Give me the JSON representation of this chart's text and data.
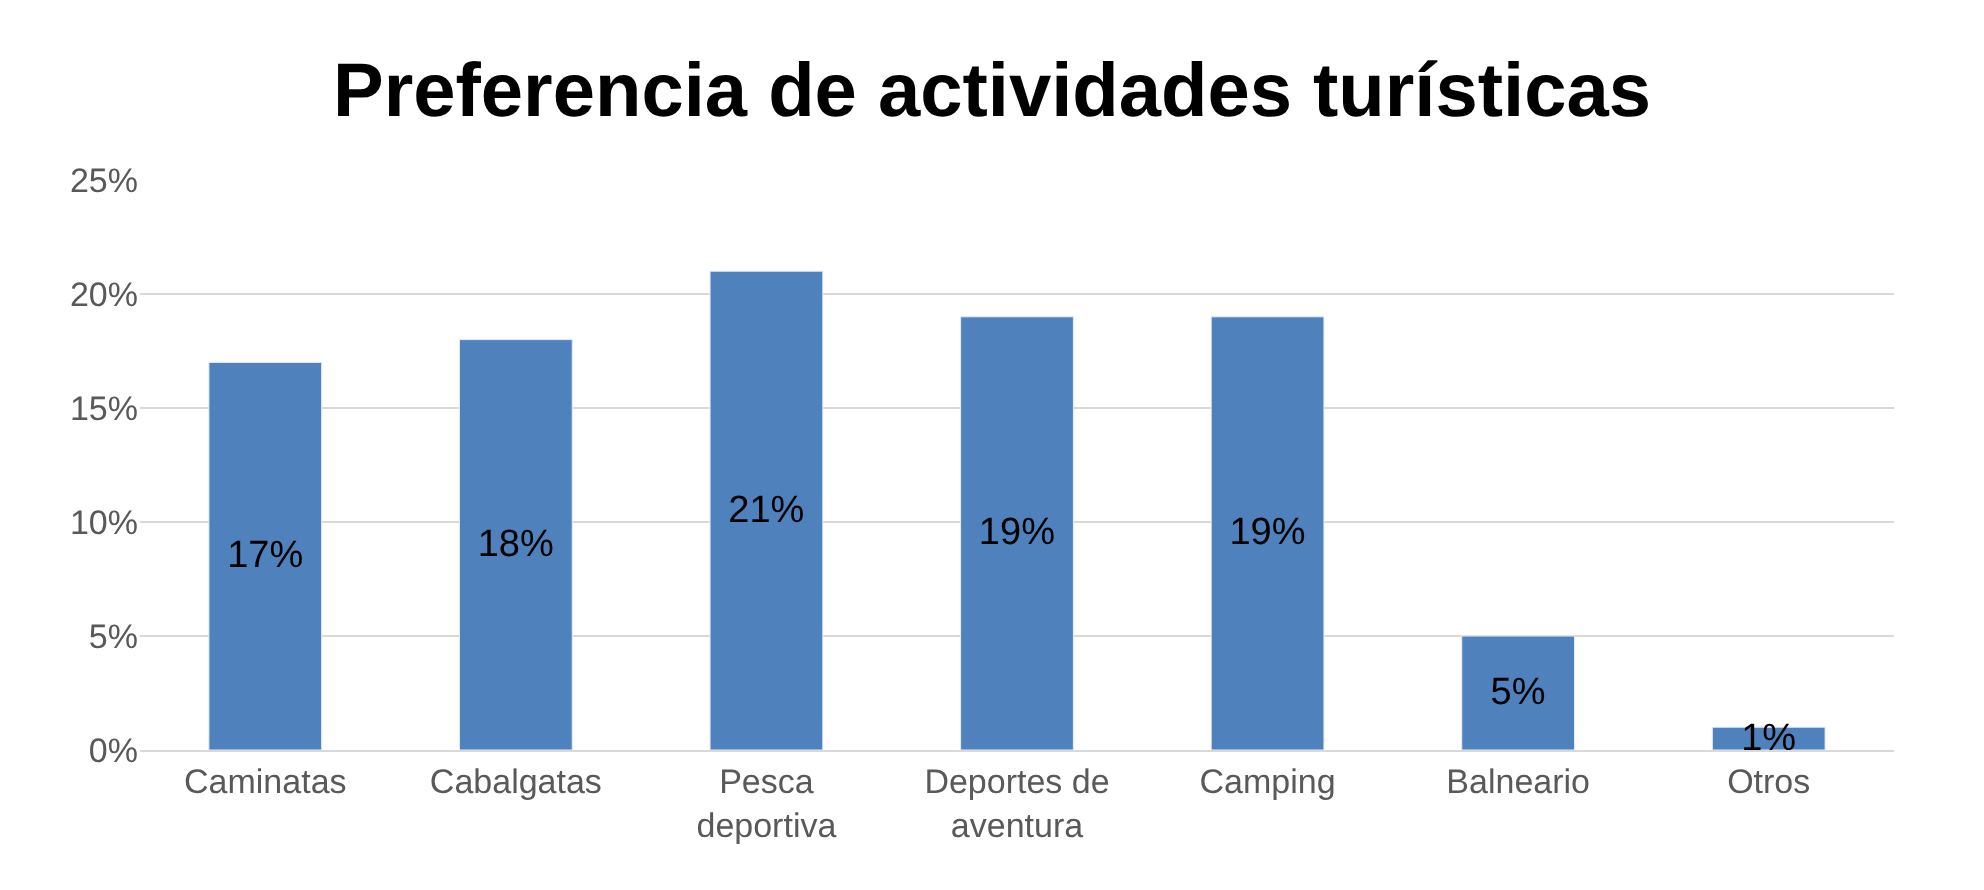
{
  "chart_data": {
    "type": "bar",
    "title": "Preferencia de actividades turísticas",
    "categories": [
      "Caminatas",
      "Cabalgatas",
      "Pesca deportiva",
      "Deportes de aventura",
      "Camping",
      "Balneario",
      "Otros"
    ],
    "values": [
      17,
      18,
      21,
      19,
      19,
      5,
      1
    ],
    "value_labels": [
      "17%",
      "18%",
      "21%",
      "19%",
      "19%",
      "5%",
      "1%"
    ],
    "color": "#4f81bd",
    "ylim": [
      0,
      25
    ],
    "yticks": [
      {
        "value": 0,
        "label": "0%"
      },
      {
        "value": 5,
        "label": "5%"
      },
      {
        "value": 10,
        "label": "10%"
      },
      {
        "value": 15,
        "label": "15%"
      },
      {
        "value": 20,
        "label": "20%"
      },
      {
        "value": 25,
        "label": "25%"
      }
    ],
    "grid": "y",
    "legend": false
  }
}
